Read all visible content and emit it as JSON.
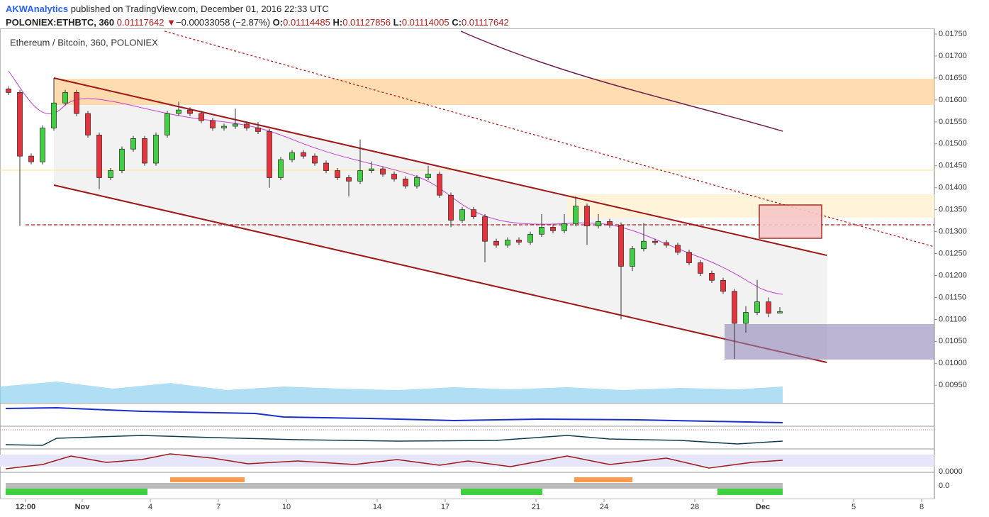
{
  "header": {
    "author": "AKWAnalytics",
    "published": "published on TradingView.com, December 01, 2016 22:33 UTC",
    "symbol": "POLONIEX:ETHBTC, 360",
    "last": "0.01117642",
    "arrow": "▼",
    "change": "−0.00033058 (−2.87%)",
    "open_label": "O:",
    "open": "0.01114485",
    "high_label": "H:",
    "high": "0.01127856",
    "low_label": "L:",
    "low": "0.01114005",
    "close_label": "C:",
    "close": "0.01117642"
  },
  "indicator_labels": [
    "0.0000",
    "0.0"
  ],
  "chart_data": {
    "type": "candlestick",
    "title": "Ethereum / Bitcoin, 360, POLONIEX",
    "up_color": "#3fd13f",
    "down_color": "#e8323c",
    "open": [
      0.01625,
      0.01617,
      0.01472,
      0.01459,
      0.01536,
      0.01593,
      0.01617,
      0.01569,
      0.0152,
      0.01423,
      0.01439,
      0.01488,
      0.01512,
      0.01456,
      0.0152,
      0.01569,
      0.01577,
      0.01569,
      0.01553,
      0.01536,
      0.0154,
      0.01545,
      0.01536,
      0.01528,
      0.01423,
      0.01464,
      0.0148,
      0.01472,
      0.01456,
      0.01439,
      0.01423,
      0.01415,
      0.01439,
      0.01443,
      0.01431,
      0.0142,
      0.01404,
      0.01423,
      0.01431,
      0.01383,
      0.01326,
      0.0135,
      0.01334,
      0.01278,
      0.01269,
      0.01281,
      0.01276,
      0.01294,
      0.0131,
      0.01302,
      0.01318,
      0.01358,
      0.01313,
      0.01323,
      0.01315,
      0.01221,
      0.01261,
      0.01278,
      0.01275,
      0.01269,
      0.01253,
      0.01229,
      0.01205,
      0.01189,
      0.01164,
      0.01091,
      0.01116,
      0.0114,
      0.01114485
    ],
    "high": [
      0.01631,
      0.01623,
      0.01478,
      0.01542,
      0.0165,
      0.01623,
      0.01623,
      0.01575,
      0.01526,
      0.01445,
      0.01494,
      0.01518,
      0.01518,
      0.01526,
      0.01575,
      0.01596,
      0.01583,
      0.01575,
      0.01559,
      0.01546,
      0.0158,
      0.01551,
      0.0155,
      0.01534,
      0.0147,
      0.01486,
      0.01486,
      0.01478,
      0.01462,
      0.01445,
      0.01429,
      0.0151,
      0.0146,
      0.01449,
      0.01437,
      0.01426,
      0.01429,
      0.0145,
      0.01437,
      0.01389,
      0.01356,
      0.01356,
      0.0134,
      0.01284,
      0.01287,
      0.01287,
      0.013,
      0.0134,
      0.01316,
      0.0134,
      0.0138,
      0.01364,
      0.0134,
      0.01329,
      0.01321,
      0.01267,
      0.0132,
      0.01284,
      0.01281,
      0.01275,
      0.01259,
      0.01235,
      0.01211,
      0.01195,
      0.0117,
      0.0113,
      0.0119,
      0.0115,
      0.01127856
    ],
    "low": [
      0.01611,
      0.01313,
      0.01453,
      0.01453,
      0.0153,
      0.01587,
      0.01563,
      0.01514,
      0.01396,
      0.01417,
      0.01433,
      0.01482,
      0.0145,
      0.0145,
      0.01514,
      0.01563,
      0.01563,
      0.01547,
      0.0153,
      0.0153,
      0.01534,
      0.0153,
      0.01522,
      0.014,
      0.01417,
      0.01458,
      0.01466,
      0.0145,
      0.01433,
      0.01417,
      0.0138,
      0.01409,
      0.01433,
      0.01425,
      0.01414,
      0.01398,
      0.01398,
      0.01417,
      0.01377,
      0.0131,
      0.0132,
      0.01328,
      0.0123,
      0.01263,
      0.01263,
      0.0127,
      0.0127,
      0.01288,
      0.01296,
      0.01296,
      0.01312,
      0.0127,
      0.01307,
      0.01309,
      0.011,
      0.0121,
      0.01255,
      0.01269,
      0.01263,
      0.01247,
      0.01223,
      0.01199,
      0.01183,
      0.01158,
      0.0101,
      0.0107,
      0.0111,
      0.01105,
      0.01114005
    ],
    "close": [
      0.01617,
      0.01472,
      0.01459,
      0.01536,
      0.01593,
      0.01617,
      0.01569,
      0.0152,
      0.01423,
      0.01439,
      0.01488,
      0.01512,
      0.01456,
      0.0152,
      0.01569,
      0.01577,
      0.01569,
      0.01553,
      0.01536,
      0.0154,
      0.01545,
      0.01536,
      0.01528,
      0.01423,
      0.01464,
      0.0148,
      0.01472,
      0.01456,
      0.01439,
      0.01423,
      0.01415,
      0.01439,
      0.01443,
      0.01431,
      0.0142,
      0.01404,
      0.01423,
      0.01431,
      0.01383,
      0.01326,
      0.0135,
      0.01334,
      0.01278,
      0.01269,
      0.01281,
      0.01276,
      0.01294,
      0.0131,
      0.01302,
      0.01318,
      0.01358,
      0.01313,
      0.01323,
      0.01315,
      0.01221,
      0.01261,
      0.01278,
      0.01275,
      0.01269,
      0.01253,
      0.01229,
      0.01205,
      0.01189,
      0.01164,
      0.01091,
      0.01116,
      0.0114,
      0.01114,
      0.01117642
    ],
    "ylim": [
      0.01763,
      0.0091
    ],
    "yticks": [
      {
        "value": 0.0175,
        "label": "0.01750"
      },
      {
        "value": 0.017,
        "label": "0.01700"
      },
      {
        "value": 0.0165,
        "label": "0.01650"
      },
      {
        "value": 0.016,
        "label": "0.01600"
      },
      {
        "value": 0.0155,
        "label": "0.01550"
      },
      {
        "value": 0.015,
        "label": "0.01500"
      },
      {
        "value": 0.0145,
        "label": "0.01450"
      },
      {
        "value": 0.014,
        "label": "0.01400"
      },
      {
        "value": 0.0135,
        "label": "0.01350"
      },
      {
        "value": 0.013,
        "label": "0.01300"
      },
      {
        "value": 0.0125,
        "label": "0.01250"
      },
      {
        "value": 0.012,
        "label": "0.01200"
      },
      {
        "value": 0.0115,
        "label": "0.01150"
      },
      {
        "value": 0.011,
        "label": "0.01100"
      },
      {
        "value": 0.0105,
        "label": "0.01050"
      },
      {
        "value": 0.01,
        "label": "0.01000"
      },
      {
        "value": 0.0095,
        "label": "0.00950"
      }
    ],
    "xlim": [
      -0.75,
      81.625
    ],
    "xticks": [
      {
        "value": 1.5,
        "label": "12:00"
      },
      {
        "value": 6.5,
        "label": "Nov"
      },
      {
        "value": 12.5,
        "label": "4"
      },
      {
        "value": 18.5,
        "label": "7"
      },
      {
        "value": 24.5,
        "label": "10"
      },
      {
        "value": 32.5,
        "label": "14"
      },
      {
        "value": 38.5,
        "label": "17"
      },
      {
        "value": 46.5,
        "label": "21"
      },
      {
        "value": 52.5,
        "label": "24"
      },
      {
        "value": 60.5,
        "label": "28"
      },
      {
        "value": 66.5,
        "label": "Dec"
      },
      {
        "value": 74.5,
        "label": "5"
      },
      {
        "value": 80.5,
        "label": "8"
      }
    ]
  }
}
